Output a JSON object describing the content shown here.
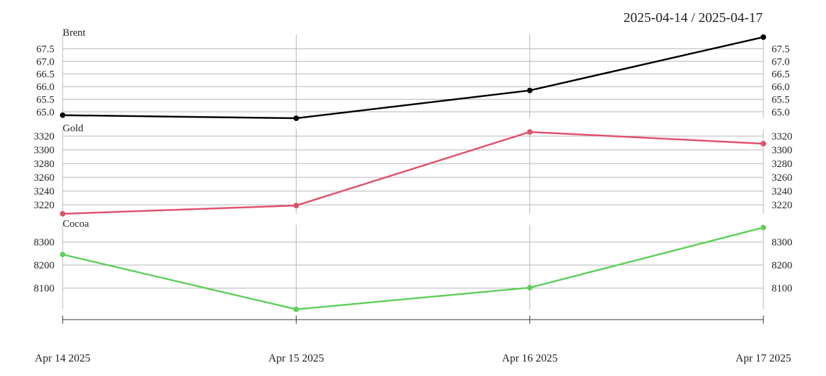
{
  "header": {
    "date_range": "2025-04-14 / 2025-04-17"
  },
  "chart_data": [
    {
      "type": "line",
      "title": "Brent",
      "x": [
        "2025-04-14",
        "2025-04-15",
        "2025-04-16",
        "2025-04-17"
      ],
      "series": [
        {
          "values": [
            64.87,
            64.75,
            65.85,
            67.96
          ],
          "color": "#000000"
        }
      ],
      "yticks": [
        65.0,
        65.5,
        66.0,
        66.5,
        67.0,
        67.5
      ],
      "ytick_labels": [
        "65.0",
        "65.5",
        "66.0",
        "66.5",
        "67.0",
        "67.5"
      ],
      "ylim": [
        64.75,
        67.96
      ],
      "grid": true,
      "axes": "both sides"
    },
    {
      "type": "line",
      "title": "Gold",
      "x": [
        "2025-04-14",
        "2025-04-15",
        "2025-04-16",
        "2025-04-17"
      ],
      "series": [
        {
          "values": [
            3207,
            3219,
            3326,
            3309
          ],
          "color": "#e0506a"
        }
      ],
      "yticks": [
        3220,
        3240,
        3260,
        3280,
        3300,
        3320
      ],
      "ytick_labels": [
        "3220",
        "3240",
        "3260",
        "3280",
        "3300",
        "3320"
      ],
      "ylim": [
        3207,
        3326
      ],
      "grid": true,
      "axes": "both sides"
    },
    {
      "type": "line",
      "title": "Cocoa",
      "x": [
        "2025-04-14",
        "2025-04-15",
        "2025-04-16",
        "2025-04-17"
      ],
      "series": [
        {
          "values": [
            8246,
            8008,
            8102,
            8363
          ],
          "color": "#5ed05a"
        }
      ],
      "yticks": [
        8100,
        8200,
        8300
      ],
      "ytick_labels": [
        "8100",
        "8200",
        "8300"
      ],
      "ylim": [
        8008,
        8363
      ],
      "grid": true,
      "axes": "both sides"
    }
  ],
  "x_axis": {
    "tick_labels": [
      "Apr 14 2025",
      "Apr 15 2025",
      "Apr 16 2025",
      "Apr 17 2025"
    ]
  }
}
